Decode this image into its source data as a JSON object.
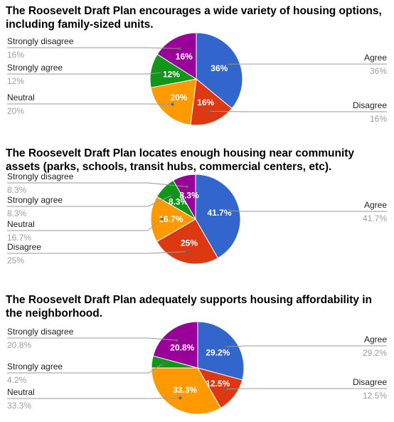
{
  "chart_data": [
    {
      "type": "pie",
      "title": "The Roosevelt Draft Plan encourages a wide variety of housing options, including family-sized units.",
      "slices": [
        {
          "label": "Agree",
          "value": 36,
          "display": "36%",
          "color": "#3366cc"
        },
        {
          "label": "Disagree",
          "value": 16,
          "display": "16%",
          "color": "#dc3912"
        },
        {
          "label": "Neutral",
          "value": 20,
          "display": "20%",
          "color": "#ff9900"
        },
        {
          "label": "Strongly agree",
          "value": 12,
          "display": "12%",
          "color": "#109618"
        },
        {
          "label": "Strongly disagree",
          "value": 16,
          "display": "16%",
          "color": "#990099"
        }
      ]
    },
    {
      "type": "pie",
      "title": "The Roosevelt Draft Plan locates enough housing near community assets (parks, schools, transit hubs, commercial centers, etc).",
      "slices": [
        {
          "label": "Agree",
          "value": 41.7,
          "display": "41.7%",
          "color": "#3366cc"
        },
        {
          "label": "Disagree",
          "value": 25,
          "display": "25%",
          "color": "#dc3912"
        },
        {
          "label": "Neutral",
          "value": 16.7,
          "display": "16.7%",
          "color": "#ff9900"
        },
        {
          "label": "Strongly agree",
          "value": 8.3,
          "display": "8.3%",
          "color": "#109618"
        },
        {
          "label": "Strongly disagree",
          "value": 8.3,
          "display": "8.3%",
          "color": "#990099"
        }
      ]
    },
    {
      "type": "pie",
      "title": "The Roosevelt Draft Plan adequately supports housing affordability in the neighborhood.",
      "slices": [
        {
          "label": "Agree",
          "value": 29.2,
          "display": "29.2%",
          "color": "#3366cc"
        },
        {
          "label": "Disagree",
          "value": 12.5,
          "display": "12.5%",
          "color": "#dc3912"
        },
        {
          "label": "Neutral",
          "value": 33.3,
          "display": "33.3%",
          "color": "#ff9900"
        },
        {
          "label": "Strongly agree",
          "value": 4.2,
          "display": "4.2%",
          "color": "#109618"
        },
        {
          "label": "Strongly disagree",
          "value": 20.8,
          "display": "20.8%",
          "color": "#990099"
        }
      ]
    }
  ]
}
